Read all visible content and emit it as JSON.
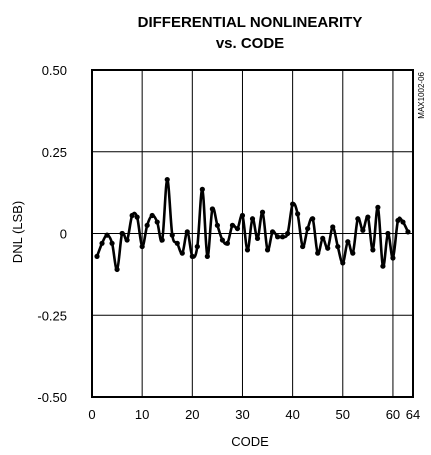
{
  "chart_data": {
    "type": "line",
    "title_lines": [
      "DIFFERENTIAL NONLINEARITY",
      "vs. CODE"
    ],
    "xlabel": "CODE",
    "ylabel": "DNL (LSB)",
    "side_code": "MAX1002-06",
    "xlim": [
      0,
      64
    ],
    "ylim": [
      -0.5,
      0.5
    ],
    "xticks": [
      0,
      10,
      20,
      30,
      40,
      50,
      60,
      64
    ],
    "xtick_labels": [
      "0",
      "10",
      "20",
      "30",
      "40",
      "50",
      "60",
      "64"
    ],
    "x_gridlines": [
      10,
      20,
      30,
      40,
      50,
      60
    ],
    "yticks": [
      0.5,
      0.25,
      0,
      -0.25,
      -0.5
    ],
    "ytick_labels": [
      "0.50",
      "0.25",
      "0",
      "-0.25",
      "-0.50"
    ],
    "grid": true,
    "series": [
      {
        "x": [
          1,
          2,
          3,
          4,
          5,
          6,
          7,
          8,
          9,
          10,
          11,
          12,
          13,
          14,
          15,
          16,
          17,
          18,
          19,
          20,
          21,
          22,
          23,
          24,
          25,
          26,
          27,
          28,
          29,
          30,
          31,
          32,
          33,
          34,
          35,
          36,
          37,
          38,
          39,
          40,
          41,
          42,
          43,
          44,
          45,
          46,
          47,
          48,
          49,
          50,
          51,
          52,
          53,
          54,
          55,
          56,
          57,
          58,
          59,
          60,
          61,
          62,
          63
        ],
        "y": [
          -0.07,
          -0.03,
          -0.005,
          -0.03,
          -0.11,
          0.0,
          -0.02,
          0.055,
          0.05,
          -0.04,
          0.025,
          0.055,
          0.035,
          -0.02,
          0.165,
          -0.005,
          -0.03,
          -0.06,
          0.005,
          -0.07,
          -0.04,
          0.135,
          -0.07,
          0.075,
          0.025,
          -0.02,
          -0.03,
          0.025,
          0.015,
          0.055,
          -0.05,
          0.045,
          -0.015,
          0.065,
          -0.05,
          0.005,
          -0.01,
          -0.01,
          0.0,
          0.09,
          0.06,
          -0.04,
          0.015,
          0.045,
          -0.06,
          -0.015,
          -0.045,
          0.02,
          -0.04,
          -0.09,
          -0.025,
          -0.06,
          0.045,
          0.01,
          0.05,
          -0.05,
          0.08,
          -0.1,
          0.0,
          -0.075,
          0.04,
          0.035,
          0.005
        ]
      }
    ]
  }
}
